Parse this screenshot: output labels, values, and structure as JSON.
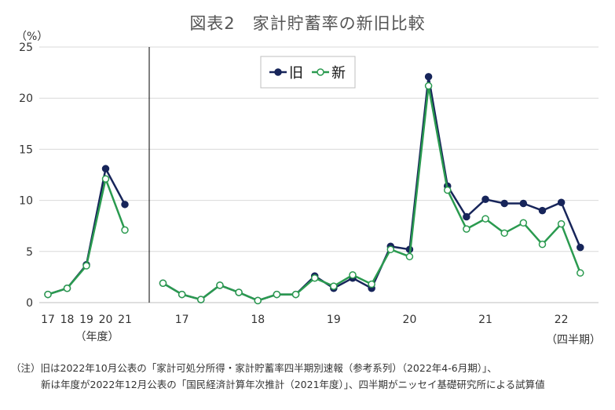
{
  "title": "図表2　家計貯蓄率の新旧比較",
  "unit_label": "（%）",
  "annual_axis_label": "（年度）",
  "quarterly_axis_label": "（四半期）",
  "notes": [
    "（注）旧は2022年10月公表の「家計可処分所得・家計貯蓄率四半期別速報（参考系列）（2022年4-6月期）」、",
    "新は年度が2022年12月公表の「国民経済計算年次推計（2021年度）」、四半期がニッセイ基礎研究所による試算値"
  ],
  "chart_data": {
    "type": "line",
    "ylim": [
      0,
      25
    ],
    "yticks": [
      0,
      5,
      10,
      15,
      20,
      25
    ],
    "legend": {
      "placement": "top-center",
      "entries": [
        "旧",
        "新"
      ]
    },
    "colors": {
      "旧": "#17255a",
      "新": "#2a9a4f"
    },
    "annual": {
      "categories": [
        "17",
        "18",
        "19",
        "20",
        "21"
      ],
      "series": [
        {
          "name": "旧",
          "values": [
            0.8,
            1.4,
            3.7,
            13.1,
            9.6
          ]
        },
        {
          "name": "新",
          "values": [
            0.8,
            1.4,
            3.6,
            12.1,
            7.1
          ]
        }
      ]
    },
    "quarterly": {
      "year_labels": [
        "17",
        "18",
        "19",
        "20",
        "21",
        "22"
      ],
      "series": [
        {
          "name": "旧",
          "values": [
            1.9,
            0.8,
            0.3,
            1.7,
            1.0,
            0.2,
            0.8,
            0.8,
            2.6,
            1.4,
            2.4,
            1.4,
            5.5,
            5.2,
            22.1,
            11.4,
            8.4,
            10.1,
            9.7,
            9.7,
            9.0,
            9.8,
            5.4
          ]
        },
        {
          "name": "新",
          "values": [
            1.9,
            0.8,
            0.3,
            1.7,
            1.0,
            0.2,
            0.8,
            0.8,
            2.4,
            1.6,
            2.7,
            1.8,
            5.2,
            4.5,
            21.2,
            11.0,
            7.2,
            8.2,
            6.8,
            7.8,
            5.7,
            7.7,
            2.9
          ]
        }
      ]
    }
  }
}
